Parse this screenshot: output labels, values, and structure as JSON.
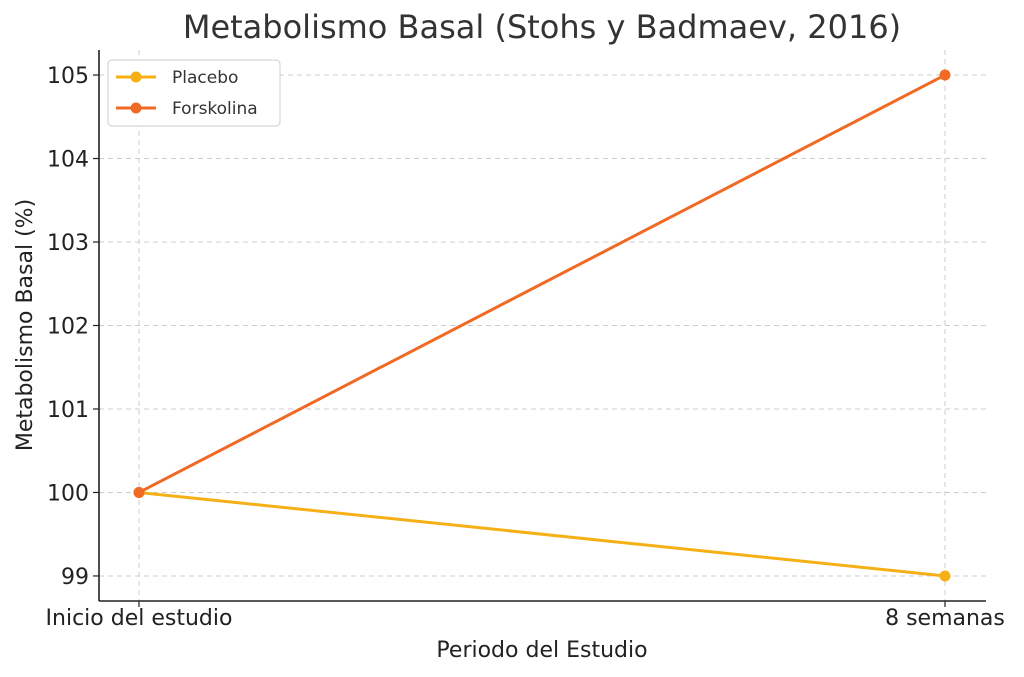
{
  "chart_data": {
    "type": "line",
    "title": "Metabolismo Basal (Stohs y Badmaev, 2016)",
    "xlabel": "Periodo del Estudio",
    "ylabel": "Metabolismo Basal (%)",
    "categories": [
      "Inicio del estudio",
      "8 semanas"
    ],
    "ylim": [
      98.7,
      105.3
    ],
    "yticks": [
      99,
      100,
      101,
      102,
      103,
      104,
      105
    ],
    "grid": true,
    "legend_position": "top-left",
    "series": [
      {
        "name": "Placebo",
        "values": [
          100,
          99
        ],
        "color": "#f5b015"
      },
      {
        "name": "Forskolina",
        "values": [
          100,
          105
        ],
        "color": "#f06a25"
      }
    ]
  }
}
